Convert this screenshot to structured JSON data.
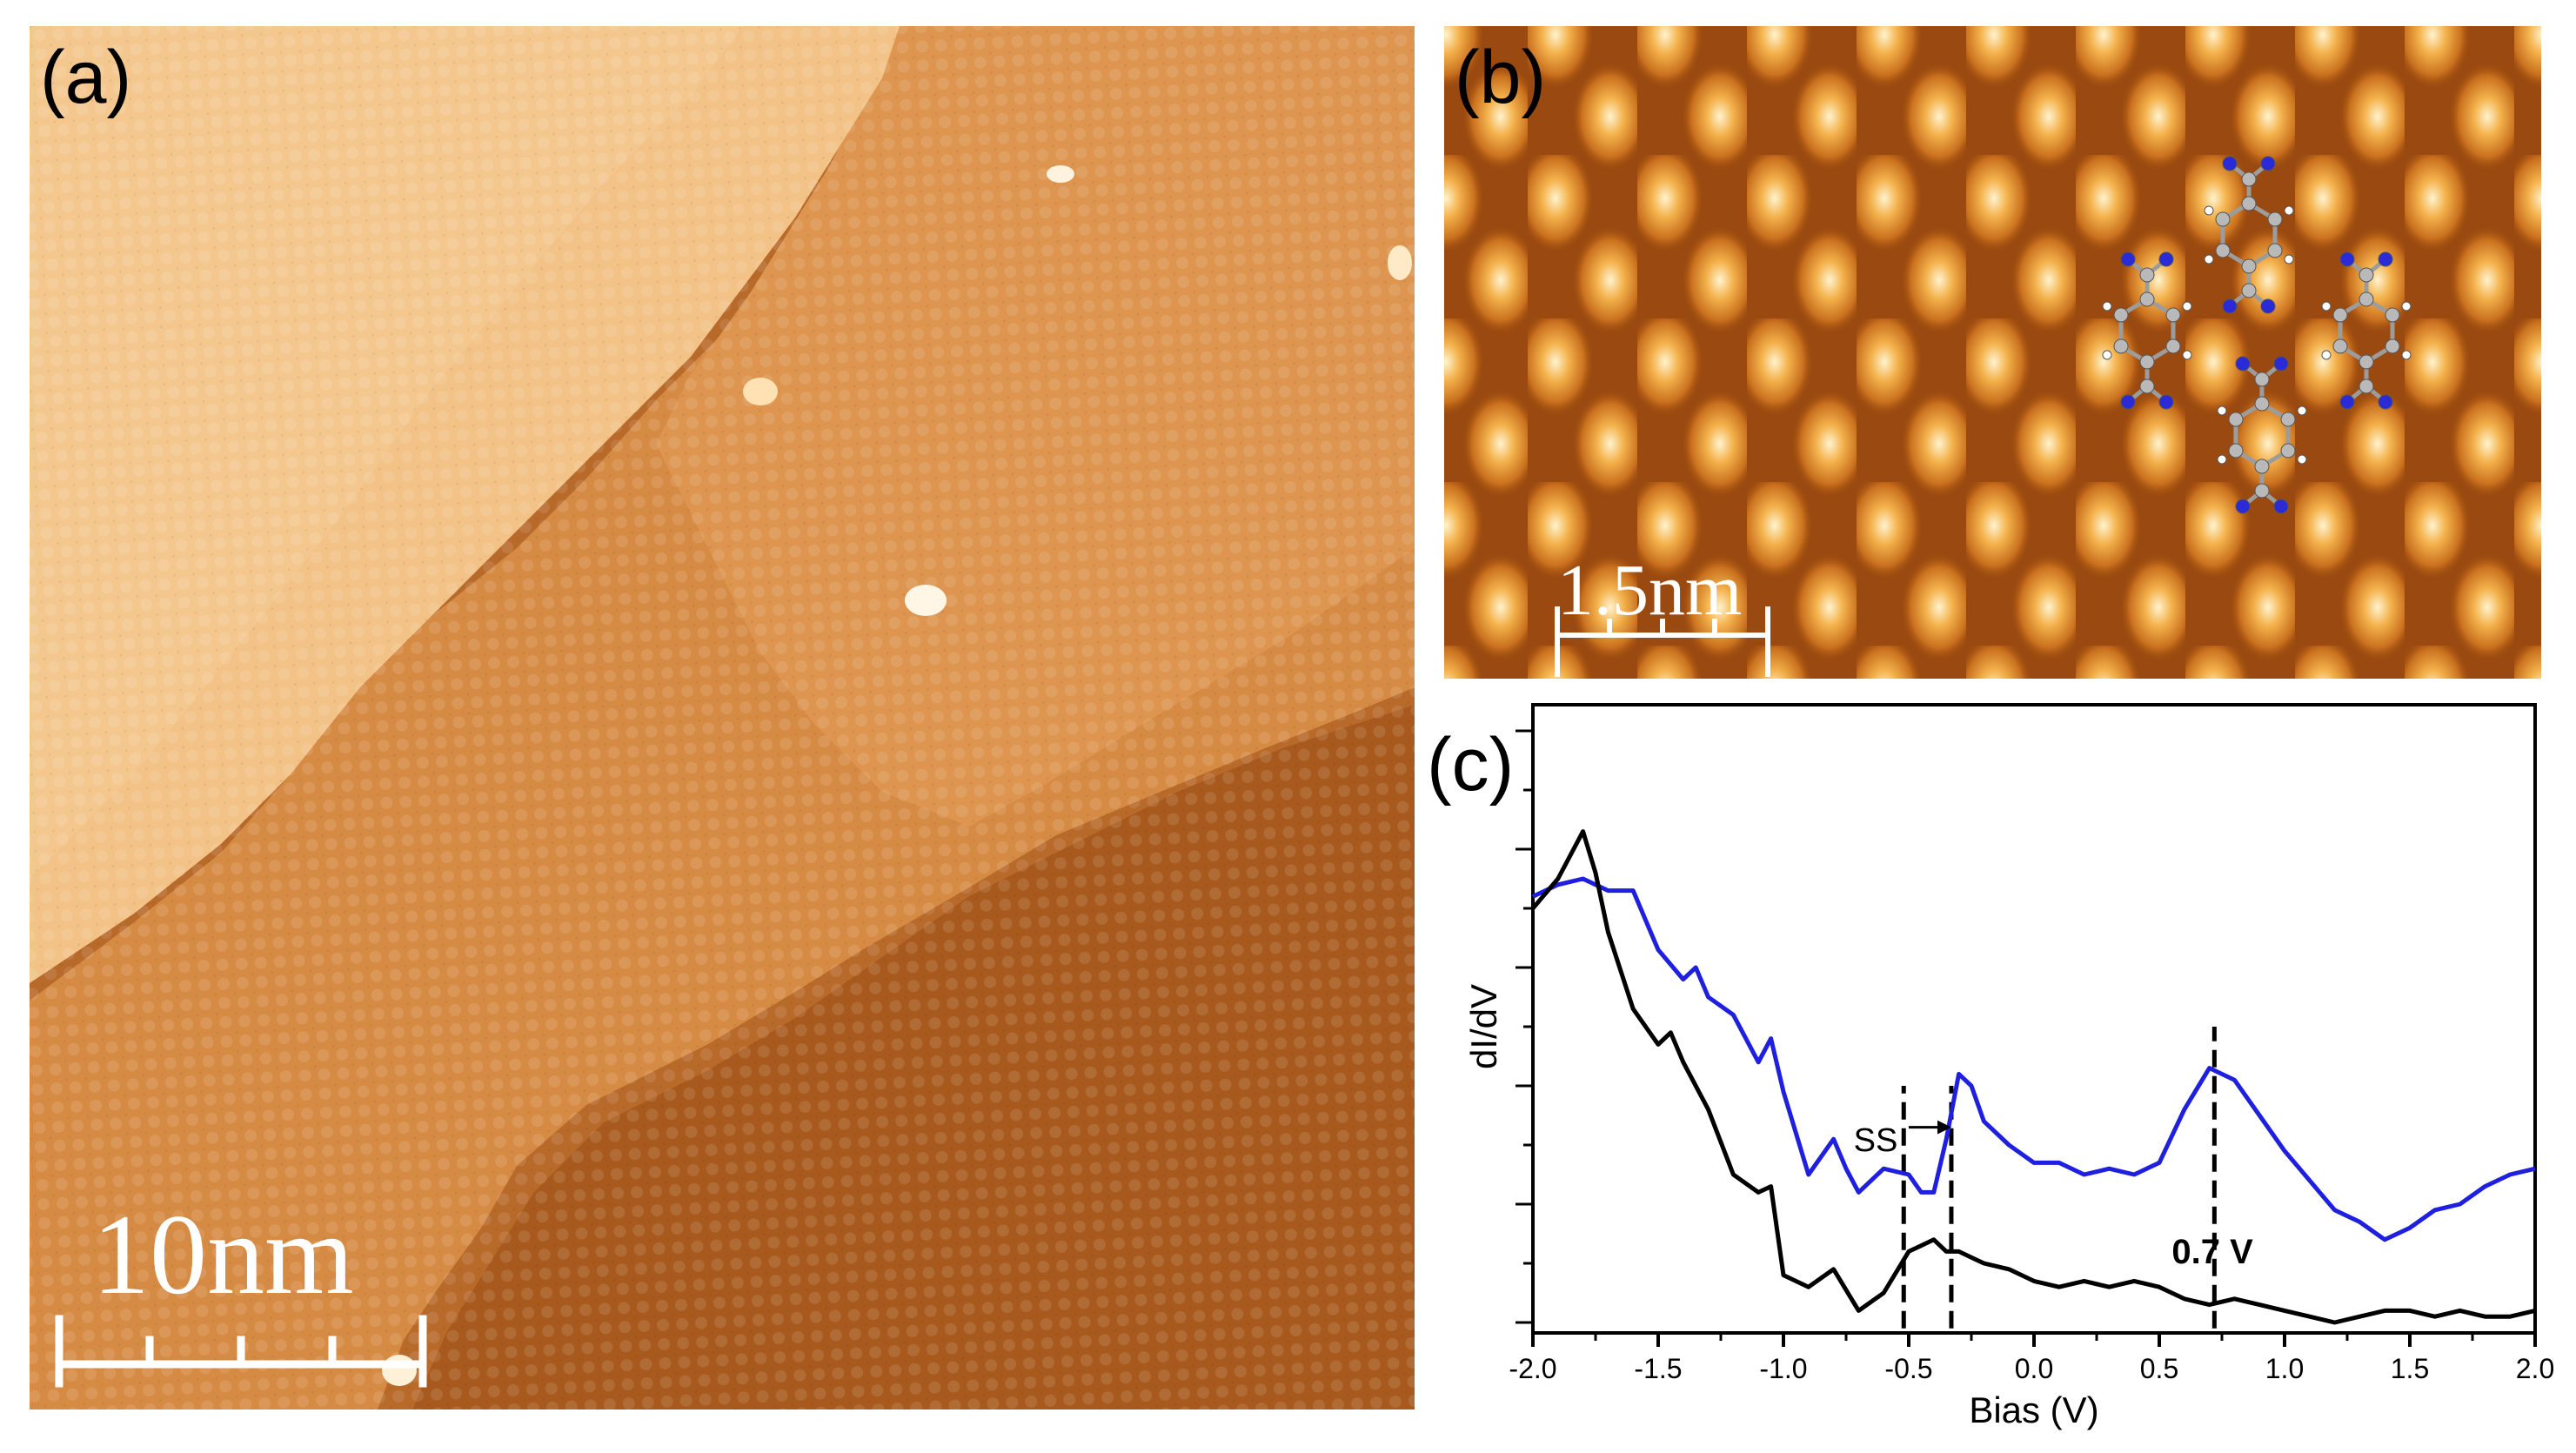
{
  "colors": {
    "stm_dark": "#8a4210",
    "stm_mid": "#c9782f",
    "stm_light": "#f6c98e",
    "blue_curve": "#1f1fe0",
    "black_curve": "#000000",
    "carbon": "#b9b9b9",
    "nitrogen": "#2a2ad6",
    "hydrogen": "#ffffff"
  },
  "panel_a": {
    "label": "(a)",
    "scalebar_label": "10nm",
    "scalebar_divisions": 4
  },
  "panel_b": {
    "label": "(b)",
    "scalebar_label": "1.5nm",
    "scalebar_divisions": 4
  },
  "panel_c": {
    "label": "(c)",
    "chart_data": {
      "type": "line",
      "xlabel": "Bias (V)",
      "ylabel": "dI/dV",
      "xlim": [
        -2.0,
        2.0
      ],
      "ylim": [
        0,
        10
      ],
      "x_ticks": [
        "-2.0",
        "-1.5",
        "-1.0",
        "-0.5",
        "0.0",
        "0.5",
        "1.0",
        "1.5",
        "2.0"
      ],
      "series": [
        {
          "name": "blue",
          "color": "#1f1fe0",
          "x": [
            -2.0,
            -1.9,
            -1.8,
            -1.7,
            -1.6,
            -1.5,
            -1.4,
            -1.35,
            -1.3,
            -1.2,
            -1.1,
            -1.05,
            -1.0,
            -0.9,
            -0.8,
            -0.75,
            -0.7,
            -0.6,
            -0.5,
            -0.45,
            -0.4,
            -0.35,
            -0.3,
            -0.25,
            -0.2,
            -0.1,
            0.0,
            0.1,
            0.2,
            0.3,
            0.4,
            0.5,
            0.6,
            0.7,
            0.8,
            0.9,
            1.0,
            1.1,
            1.2,
            1.3,
            1.4,
            1.5,
            1.6,
            1.7,
            1.8,
            1.9,
            2.0
          ],
          "y": [
            7.2,
            7.4,
            7.5,
            7.3,
            7.3,
            6.3,
            5.8,
            6.0,
            5.5,
            5.2,
            4.4,
            4.8,
            3.9,
            2.5,
            3.1,
            2.6,
            2.2,
            2.6,
            2.5,
            2.2,
            2.2,
            3.1,
            4.2,
            4.0,
            3.4,
            3.0,
            2.7,
            2.7,
            2.5,
            2.6,
            2.5,
            2.7,
            3.6,
            4.3,
            4.1,
            3.5,
            2.9,
            2.4,
            1.9,
            1.7,
            1.4,
            1.6,
            1.9,
            2.0,
            2.3,
            2.5,
            2.6
          ]
        },
        {
          "name": "black",
          "color": "#000000",
          "x": [
            -2.0,
            -1.9,
            -1.8,
            -1.75,
            -1.7,
            -1.6,
            -1.5,
            -1.45,
            -1.4,
            -1.3,
            -1.2,
            -1.1,
            -1.05,
            -1.0,
            -0.9,
            -0.8,
            -0.7,
            -0.6,
            -0.5,
            -0.45,
            -0.4,
            -0.35,
            -0.3,
            -0.25,
            -0.2,
            -0.1,
            0.0,
            0.1,
            0.2,
            0.3,
            0.4,
            0.5,
            0.6,
            0.7,
            0.8,
            0.9,
            1.0,
            1.1,
            1.2,
            1.3,
            1.4,
            1.5,
            1.6,
            1.7,
            1.8,
            1.9,
            2.0
          ],
          "y": [
            7.0,
            7.5,
            8.3,
            7.6,
            6.6,
            5.3,
            4.7,
            4.9,
            4.4,
            3.6,
            2.5,
            2.2,
            2.3,
            0.8,
            0.6,
            0.9,
            0.2,
            0.5,
            1.2,
            1.3,
            1.4,
            1.2,
            1.2,
            1.1,
            1.0,
            0.9,
            0.7,
            0.6,
            0.7,
            0.6,
            0.7,
            0.6,
            0.4,
            0.3,
            0.4,
            0.3,
            0.2,
            0.1,
            0.0,
            0.1,
            0.2,
            0.2,
            0.1,
            0.2,
            0.1,
            0.1,
            0.2
          ]
        }
      ],
      "annotations": [
        {
          "text": "SS",
          "x": -0.72,
          "y": 2.9
        },
        {
          "text": "0.7 V",
          "x": 0.55,
          "y": 1.0
        }
      ],
      "dashed_lines": [
        -0.52,
        -0.33,
        0.72
      ],
      "shift_arrow": {
        "from": -0.5,
        "to": -0.33,
        "y": 3.3
      }
    }
  }
}
